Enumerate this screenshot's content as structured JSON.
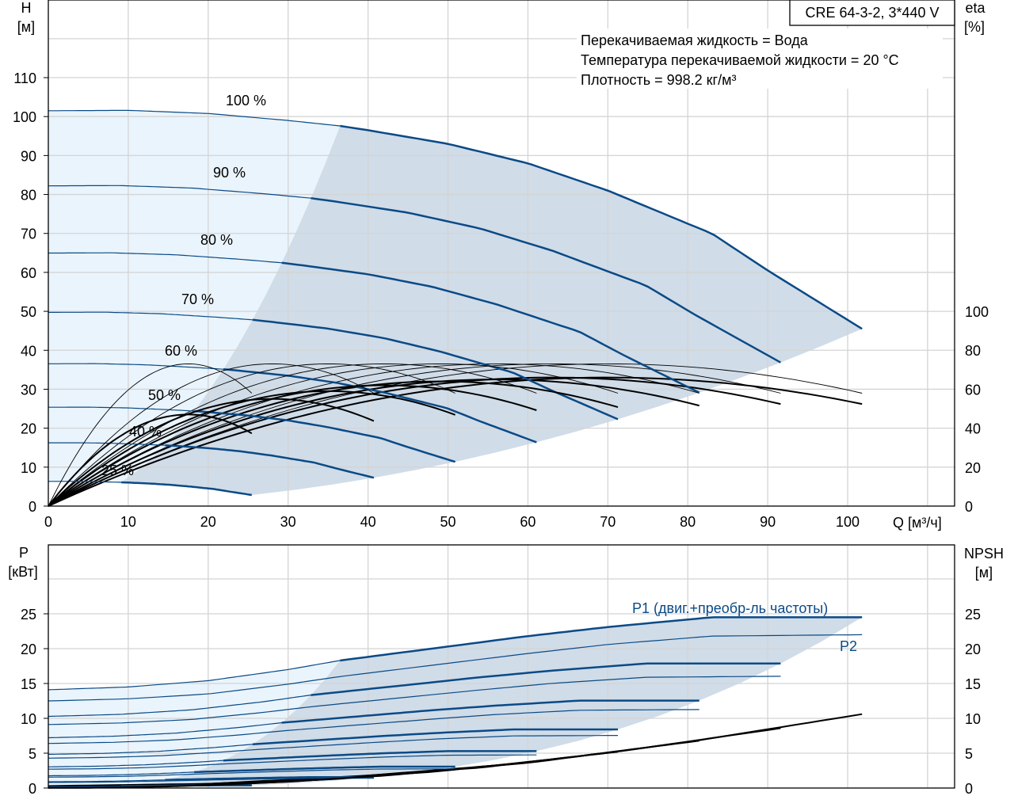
{
  "chart_data": [
    {
      "type": "line",
      "name": "head-efficiency-chart",
      "title": "CRE 64-3-2, 3*440 V",
      "annotations": [
        "Перекачиваемая жидкость = Вода",
        "Температура перекачиваемой жидкости = 20 °C",
        "Плотность = 998.2 кг/м³"
      ],
      "xlabel": "Q [м³/ч]",
      "ylabel": {
        "name": "H",
        "unit": "[м]"
      },
      "y2label": {
        "name": "eta",
        "unit": "[%]"
      },
      "xlim": [
        0,
        113.4
      ],
      "ylim": [
        0,
        130
      ],
      "y2lim": [
        0,
        260
      ],
      "xticks": [
        0,
        10,
        20,
        30,
        40,
        50,
        60,
        70,
        80,
        90,
        100
      ],
      "yticks": [
        0,
        10,
        20,
        30,
        40,
        50,
        60,
        70,
        80,
        90,
        100,
        110
      ],
      "y2ticks": [
        0,
        20,
        40,
        60,
        80,
        100
      ],
      "grid": true,
      "speeds": [
        1.0,
        0.9,
        0.8,
        0.7,
        0.6,
        0.5,
        0.4,
        0.25
      ],
      "speed_labels": [
        "100 %",
        "90 %",
        "80 %",
        "70 %",
        "60 %",
        "50 %",
        "40 %",
        "25 %"
      ],
      "head_curve_100pct": [
        [
          0,
          101.5
        ],
        [
          10,
          101.6
        ],
        [
          20,
          100.8
        ],
        [
          30,
          99
        ],
        [
          36.5,
          97.6
        ],
        [
          40,
          96.5
        ],
        [
          50,
          93
        ],
        [
          60,
          88
        ],
        [
          70,
          81
        ],
        [
          80,
          72.5
        ],
        [
          83,
          70
        ],
        [
          90,
          60.5
        ],
        [
          101.8,
          45.5
        ]
      ],
      "recommended_region_start_q_100pct": 36.5,
      "max_q_100pct": 101.8,
      "eta_peak_q_100pct": 70,
      "eta_pump_peak": 73,
      "eta_total_peak_by_speed": [
        66,
        66,
        65,
        64,
        62,
        59,
        55,
        47
      ],
      "colors": {
        "curve": "#0a4a86",
        "eta": "#000000",
        "region_light": "#eaf4fc",
        "region_dark": "#d0dce8"
      }
    },
    {
      "type": "line",
      "name": "power-npsh-chart",
      "xlabel": "Q [м³/ч]",
      "ylabel": {
        "name": "P",
        "unit": "[кВт]"
      },
      "y2label": {
        "name": "NPSH",
        "unit": "[м]"
      },
      "xlim": [
        0,
        113.4
      ],
      "ylim": [
        0,
        35
      ],
      "yticks": [
        0,
        5,
        10,
        15,
        20,
        25
      ],
      "y2ticks": [
        0,
        5,
        10,
        15,
        20,
        25
      ],
      "series_labels": {
        "p1": "P1 (двиг.+преобр-ль частоты)",
        "p2": "P2"
      },
      "p1_curve_100pct": [
        [
          0,
          14.1
        ],
        [
          10,
          14.5
        ],
        [
          20,
          15.4
        ],
        [
          30,
          17
        ],
        [
          36.5,
          18.3
        ],
        [
          50,
          20.3
        ],
        [
          60,
          21.8
        ],
        [
          70,
          23.1
        ],
        [
          83,
          24.5
        ],
        [
          101.8,
          24.5
        ]
      ],
      "p2_curve_100pct": [
        [
          0,
          12.5
        ],
        [
          10,
          12.8
        ],
        [
          20,
          13.5
        ],
        [
          30,
          14.9
        ],
        [
          36.5,
          16
        ],
        [
          50,
          17.9
        ],
        [
          60,
          19.3
        ],
        [
          70,
          20.6
        ],
        [
          83,
          21.8
        ],
        [
          101.8,
          22
        ]
      ],
      "npsh_curve_100pct": [
        [
          0,
          0.3
        ],
        [
          20,
          0.6
        ],
        [
          40,
          1.8
        ],
        [
          60,
          3.6
        ],
        [
          80,
          6.6
        ],
        [
          101.8,
          10.6
        ]
      ]
    }
  ]
}
